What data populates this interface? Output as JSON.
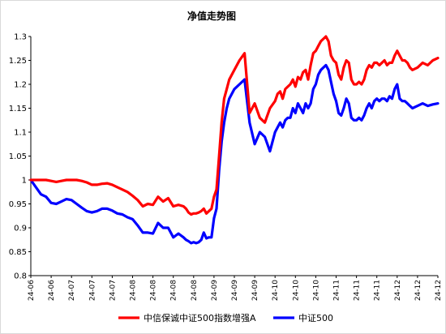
{
  "chart_data": {
    "type": "line",
    "title": "净值走势图",
    "xlabel": "",
    "ylabel": "",
    "ylim": [
      0.8,
      1.3
    ],
    "yticks": [
      "0.8",
      "0.85",
      "0.9",
      "0.95",
      "1",
      "1.05",
      "1.1",
      "1.15",
      "1.2",
      "1.25",
      "1.3"
    ],
    "xticks": [
      "24-06",
      "24-06",
      "24-07",
      "24-07",
      "24-07",
      "24-08",
      "24-08",
      "24-08",
      "24-08",
      "24-09",
      "24-09",
      "24-09",
      "24-10",
      "24-10",
      "24-10",
      "24-11",
      "24-11",
      "24-11",
      "24-12",
      "24-12",
      "24-12"
    ],
    "grid": false,
    "legend_position": "bottom",
    "series": [
      {
        "name": "中信保诚中证500指数增强A",
        "color": "#ff0000",
        "x": [
          0,
          2,
          4,
          6,
          8,
          10,
          12,
          14,
          16,
          18,
          20,
          22,
          24,
          26,
          28,
          30,
          32,
          34,
          36,
          38,
          40,
          42,
          44,
          46,
          48,
          50,
          52,
          54,
          56,
          58,
          60,
          61,
          62,
          63,
          64,
          65,
          66,
          67,
          68,
          69,
          70,
          71,
          72,
          73,
          74,
          75,
          76,
          77,
          78,
          80,
          82,
          84,
          86,
          88,
          90,
          92,
          94,
          96,
          97,
          98,
          99,
          100,
          101,
          102,
          103,
          104,
          105,
          106,
          107,
          108,
          109,
          110,
          111,
          112,
          113,
          114,
          116,
          117,
          118,
          119,
          120,
          121,
          122,
          123,
          124,
          125,
          126,
          127,
          128,
          129,
          130,
          131,
          132,
          133,
          134,
          135,
          136,
          137,
          138,
          139,
          140,
          141,
          142,
          143,
          144,
          145,
          146,
          147,
          148,
          149,
          150,
          152,
          154,
          156,
          158,
          160
        ],
        "values": [
          1.0,
          1.0,
          1.0,
          1.0,
          0.998,
          0.996,
          0.998,
          1.0,
          1.0,
          1.0,
          0.998,
          0.995,
          0.99,
          0.99,
          0.992,
          0.993,
          0.99,
          0.985,
          0.98,
          0.975,
          0.967,
          0.958,
          0.945,
          0.95,
          0.948,
          0.965,
          0.955,
          0.962,
          0.945,
          0.948,
          0.945,
          0.94,
          0.932,
          0.928,
          0.93,
          0.93,
          0.932,
          0.935,
          0.94,
          0.93,
          0.935,
          0.94,
          0.965,
          0.98,
          1.05,
          1.12,
          1.17,
          1.19,
          1.21,
          1.23,
          1.25,
          1.265,
          1.14,
          1.16,
          1.13,
          1.12,
          1.15,
          1.165,
          1.18,
          1.185,
          1.17,
          1.19,
          1.195,
          1.2,
          1.21,
          1.195,
          1.215,
          1.21,
          1.225,
          1.23,
          1.21,
          1.24,
          1.265,
          1.27,
          1.28,
          1.29,
          1.3,
          1.29,
          1.26,
          1.25,
          1.245,
          1.22,
          1.21,
          1.235,
          1.25,
          1.245,
          1.21,
          1.2,
          1.2,
          1.205,
          1.2,
          1.21,
          1.23,
          1.24,
          1.235,
          1.245,
          1.245,
          1.24,
          1.245,
          1.25,
          1.24,
          1.245,
          1.245,
          1.26,
          1.27,
          1.26,
          1.25,
          1.25,
          1.245,
          1.235,
          1.23,
          1.235,
          1.245,
          1.24,
          1.25,
          1.255
        ]
      },
      {
        "name": "中证500",
        "color": "#0000ff",
        "x": [
          0,
          2,
          4,
          6,
          8,
          10,
          12,
          14,
          16,
          18,
          20,
          22,
          24,
          26,
          28,
          30,
          32,
          34,
          36,
          38,
          40,
          42,
          44,
          46,
          48,
          50,
          52,
          54,
          56,
          58,
          60,
          61,
          62,
          63,
          64,
          65,
          66,
          67,
          68,
          69,
          70,
          71,
          72,
          73,
          74,
          75,
          76,
          77,
          78,
          80,
          82,
          84,
          86,
          88,
          90,
          92,
          94,
          96,
          97,
          98,
          99,
          100,
          101,
          102,
          103,
          104,
          105,
          106,
          107,
          108,
          109,
          110,
          111,
          112,
          113,
          114,
          116,
          117,
          118,
          119,
          120,
          121,
          122,
          123,
          124,
          125,
          126,
          127,
          128,
          129,
          130,
          131,
          132,
          133,
          134,
          135,
          136,
          137,
          138,
          139,
          140,
          141,
          142,
          143,
          144,
          145,
          146,
          147,
          148,
          149,
          150,
          152,
          154,
          156,
          158,
          160
        ],
        "values": [
          1.0,
          0.985,
          0.97,
          0.965,
          0.952,
          0.95,
          0.955,
          0.96,
          0.958,
          0.95,
          0.942,
          0.935,
          0.932,
          0.935,
          0.94,
          0.94,
          0.936,
          0.93,
          0.928,
          0.922,
          0.918,
          0.905,
          0.89,
          0.89,
          0.888,
          0.91,
          0.9,
          0.9,
          0.88,
          0.888,
          0.88,
          0.875,
          0.872,
          0.868,
          0.87,
          0.868,
          0.87,
          0.875,
          0.89,
          0.878,
          0.88,
          0.88,
          0.92,
          0.94,
          1.02,
          1.08,
          1.12,
          1.15,
          1.17,
          1.19,
          1.2,
          1.21,
          1.12,
          1.075,
          1.1,
          1.09,
          1.06,
          1.1,
          1.11,
          1.12,
          1.11,
          1.125,
          1.13,
          1.13,
          1.15,
          1.14,
          1.16,
          1.15,
          1.14,
          1.16,
          1.15,
          1.16,
          1.19,
          1.2,
          1.22,
          1.23,
          1.24,
          1.23,
          1.205,
          1.18,
          1.165,
          1.14,
          1.135,
          1.15,
          1.17,
          1.16,
          1.13,
          1.125,
          1.125,
          1.13,
          1.125,
          1.135,
          1.15,
          1.16,
          1.15,
          1.165,
          1.17,
          1.165,
          1.17,
          1.17,
          1.165,
          1.175,
          1.17,
          1.19,
          1.2,
          1.17,
          1.165,
          1.165,
          1.16,
          1.155,
          1.15,
          1.155,
          1.16,
          1.155,
          1.158,
          1.16
        ]
      }
    ]
  }
}
